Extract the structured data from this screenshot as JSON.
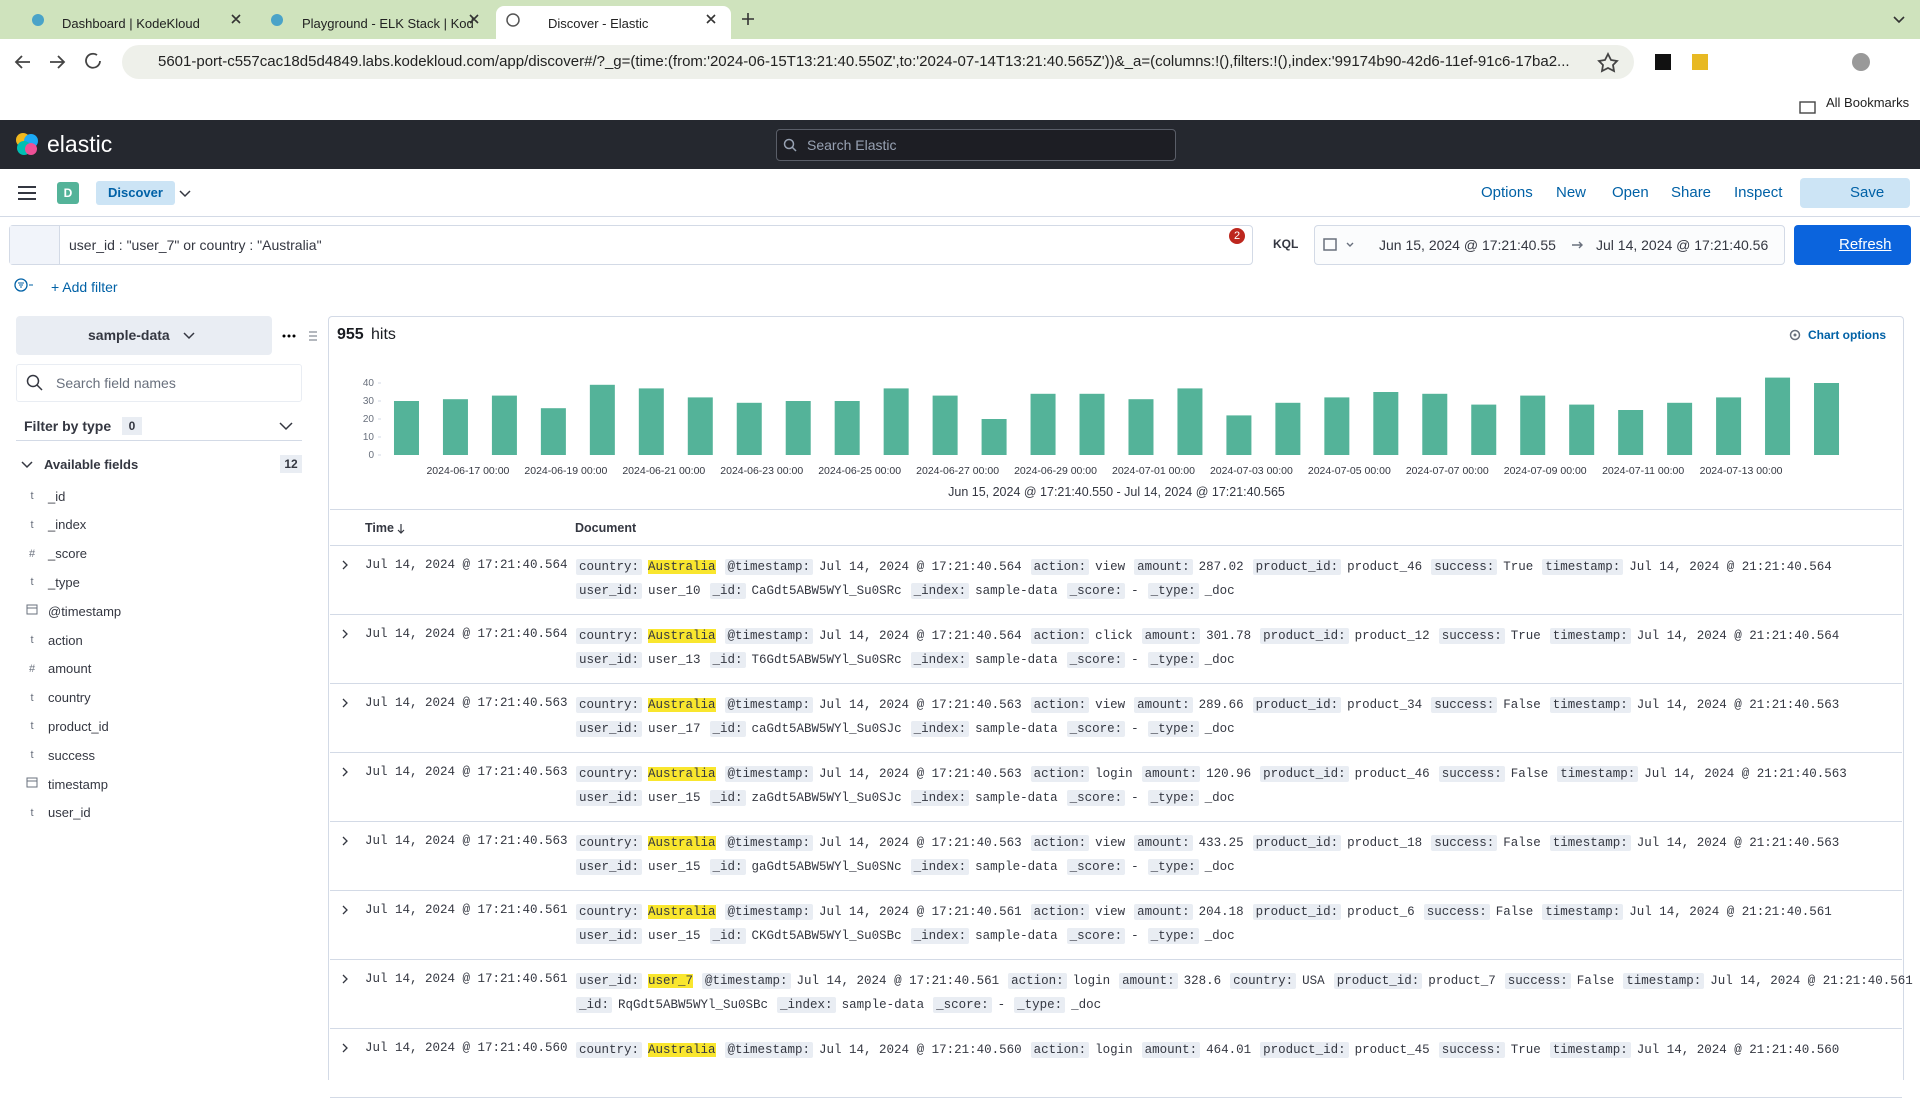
{
  "browser": {
    "tabs": [
      "Dashboard | KodeKloud",
      "Playground - ELK Stack | Kod",
      "Discover - Elastic"
    ],
    "url": "5601-port-c557cac18d5d4849.labs.kodekloud.com/app/discover#/?_g=(time:(from:'2024-06-15T13:21:40.550Z',to:'2024-07-14T13:21:40.565Z'))&_a=(columns:!(),filters:!(),index:'99174b90-42d6-11ef-91c6-17ba2...",
    "bookmarks": "All Bookmarks"
  },
  "header": {
    "logo": "elastic",
    "search": "Search Elastic"
  },
  "nav": {
    "space": "D",
    "app": "Discover",
    "menu": [
      "Options",
      "New",
      "Open",
      "Share",
      "Inspect"
    ],
    "save": "Save"
  },
  "query": {
    "text": "user_id : \"user_7\" or country : \"Australia\"",
    "badge": "2",
    "language": "KQL",
    "from": "Jun 15, 2024 @ 17:21:40.55",
    "to": "Jul 14, 2024 @ 17:21:40.56",
    "refresh": "Refresh",
    "add_filter": "+ Add filter"
  },
  "sidebar": {
    "data_view": "sample-data",
    "search": "Search field names",
    "filter_by_type": "Filter by type",
    "filter_count": "0",
    "available": "Available fields",
    "available_count": "12",
    "fields": [
      {
        "icon": "t",
        "name": "_id"
      },
      {
        "icon": "t",
        "name": "_index"
      },
      {
        "icon": "#",
        "name": "_score"
      },
      {
        "icon": "t",
        "name": "_type"
      },
      {
        "icon": null,
        "name": "@timestamp"
      },
      {
        "icon": "t",
        "name": "action"
      },
      {
        "icon": "#",
        "name": "amount"
      },
      {
        "icon": "t",
        "name": "country"
      },
      {
        "icon": "t",
        "name": "product_id"
      },
      {
        "icon": "t",
        "name": "success"
      },
      {
        "icon": null,
        "name": "timestamp"
      },
      {
        "icon": "t",
        "name": "user_id"
      }
    ]
  },
  "results": {
    "hits": "955",
    "hits_label": "hits",
    "chart_options": "Chart options"
  },
  "chart_data": {
    "type": "bar",
    "color": "#54b399",
    "x_label": "Jun 15, 2024 @ 17:21:40.550 - Jul 14, 2024 @ 17:21:40.565",
    "categories": [
      null,
      null,
      "2024-06-17 00:00",
      null,
      "2024-06-19 00:00",
      null,
      "2024-06-21 00:00",
      null,
      "2024-06-23 00:00",
      null,
      "2024-06-25 00:00",
      null,
      "2024-06-27 00:00",
      null,
      "2024-06-29 00:00",
      null,
      "2024-07-01 00:00",
      null,
      "2024-07-03 00:00",
      null,
      "2024-07-05 00:00",
      null,
      "2024-07-07 00:00",
      null,
      "2024-07-09 00:00",
      null,
      "2024-07-11 00:00",
      null,
      "2024-07-13 00:00",
      null
    ],
    "values": [
      30,
      31,
      33,
      26,
      39,
      37,
      32,
      29,
      30,
      30,
      37,
      33,
      20,
      34,
      34,
      31,
      37,
      22,
      29,
      32,
      35,
      34,
      28,
      33,
      28,
      25,
      29,
      32,
      43,
      40
    ],
    "ylim": [
      0,
      45
    ],
    "yticks": [
      0,
      10,
      20,
      30,
      40
    ]
  },
  "table": {
    "headers": [
      "Time",
      "Document"
    ],
    "rows": [
      {
        "time": "Jul 14, 2024 @ 17:21:40.564",
        "lines": [
          [
            {
              "k": "country:",
              "v": "Australia",
              "mark": true
            },
            {
              "k": "@timestamp:",
              "v": "Jul 14, 2024 @ 17:21:40.564"
            },
            {
              "k": "action:",
              "v": "view"
            },
            {
              "k": "amount:",
              "v": "287.02"
            },
            {
              "k": "product_id:",
              "v": "product_46"
            },
            {
              "k": "success:",
              "v": "True"
            },
            {
              "k": "timestamp:",
              "v": "Jul 14, 2024 @ 21:21:40.564"
            }
          ],
          [
            {
              "k": "user_id:",
              "v": "user_10"
            },
            {
              "k": "_id:",
              "v": "CaGdt5ABW5WYl_Su0SRc"
            },
            {
              "k": "_index:",
              "v": "sample-data"
            },
            {
              "k": "_score:",
              "v": "-"
            },
            {
              "k": "_type:",
              "v": "_doc"
            }
          ]
        ]
      },
      {
        "time": "Jul 14, 2024 @ 17:21:40.564",
        "lines": [
          [
            {
              "k": "country:",
              "v": "Australia",
              "mark": true
            },
            {
              "k": "@timestamp:",
              "v": "Jul 14, 2024 @ 17:21:40.564"
            },
            {
              "k": "action:",
              "v": "click"
            },
            {
              "k": "amount:",
              "v": "301.78"
            },
            {
              "k": "product_id:",
              "v": "product_12"
            },
            {
              "k": "success:",
              "v": "True"
            },
            {
              "k": "timestamp:",
              "v": "Jul 14, 2024 @ 21:21:40.564"
            }
          ],
          [
            {
              "k": "user_id:",
              "v": "user_13"
            },
            {
              "k": "_id:",
              "v": "T6Gdt5ABW5WYl_Su0SRc"
            },
            {
              "k": "_index:",
              "v": "sample-data"
            },
            {
              "k": "_score:",
              "v": "-"
            },
            {
              "k": "_type:",
              "v": "_doc"
            }
          ]
        ]
      },
      {
        "time": "Jul 14, 2024 @ 17:21:40.563",
        "lines": [
          [
            {
              "k": "country:",
              "v": "Australia",
              "mark": true
            },
            {
              "k": "@timestamp:",
              "v": "Jul 14, 2024 @ 17:21:40.563"
            },
            {
              "k": "action:",
              "v": "view"
            },
            {
              "k": "amount:",
              "v": "289.66"
            },
            {
              "k": "product_id:",
              "v": "product_34"
            },
            {
              "k": "success:",
              "v": "False"
            },
            {
              "k": "timestamp:",
              "v": "Jul 14, 2024 @ 21:21:40.563"
            }
          ],
          [
            {
              "k": "user_id:",
              "v": "user_17"
            },
            {
              "k": "_id:",
              "v": "caGdt5ABW5WYl_Su0SJc"
            },
            {
              "k": "_index:",
              "v": "sample-data"
            },
            {
              "k": "_score:",
              "v": "-"
            },
            {
              "k": "_type:",
              "v": "_doc"
            }
          ]
        ]
      },
      {
        "time": "Jul 14, 2024 @ 17:21:40.563",
        "lines": [
          [
            {
              "k": "country:",
              "v": "Australia",
              "mark": true
            },
            {
              "k": "@timestamp:",
              "v": "Jul 14, 2024 @ 17:21:40.563"
            },
            {
              "k": "action:",
              "v": "login"
            },
            {
              "k": "amount:",
              "v": "120.96"
            },
            {
              "k": "product_id:",
              "v": "product_46"
            },
            {
              "k": "success:",
              "v": "False"
            },
            {
              "k": "timestamp:",
              "v": "Jul 14, 2024 @ 21:21:40.563"
            }
          ],
          [
            {
              "k": "user_id:",
              "v": "user_15"
            },
            {
              "k": "_id:",
              "v": "zaGdt5ABW5WYl_Su0SJc"
            },
            {
              "k": "_index:",
              "v": "sample-data"
            },
            {
              "k": "_score:",
              "v": "-"
            },
            {
              "k": "_type:",
              "v": "_doc"
            }
          ]
        ]
      },
      {
        "time": "Jul 14, 2024 @ 17:21:40.563",
        "lines": [
          [
            {
              "k": "country:",
              "v": "Australia",
              "mark": true
            },
            {
              "k": "@timestamp:",
              "v": "Jul 14, 2024 @ 17:21:40.563"
            },
            {
              "k": "action:",
              "v": "view"
            },
            {
              "k": "amount:",
              "v": "433.25"
            },
            {
              "k": "product_id:",
              "v": "product_18"
            },
            {
              "k": "success:",
              "v": "False"
            },
            {
              "k": "timestamp:",
              "v": "Jul 14, 2024 @ 21:21:40.563"
            }
          ],
          [
            {
              "k": "user_id:",
              "v": "user_15"
            },
            {
              "k": "_id:",
              "v": "gaGdt5ABW5WYl_Su0SNc"
            },
            {
              "k": "_index:",
              "v": "sample-data"
            },
            {
              "k": "_score:",
              "v": "-"
            },
            {
              "k": "_type:",
              "v": "_doc"
            }
          ]
        ]
      },
      {
        "time": "Jul 14, 2024 @ 17:21:40.561",
        "lines": [
          [
            {
              "k": "country:",
              "v": "Australia",
              "mark": true
            },
            {
              "k": "@timestamp:",
              "v": "Jul 14, 2024 @ 17:21:40.561"
            },
            {
              "k": "action:",
              "v": "view"
            },
            {
              "k": "amount:",
              "v": "204.18"
            },
            {
              "k": "product_id:",
              "v": "product_6"
            },
            {
              "k": "success:",
              "v": "False"
            },
            {
              "k": "timestamp:",
              "v": "Jul 14, 2024 @ 21:21:40.561"
            }
          ],
          [
            {
              "k": "user_id:",
              "v": "user_15"
            },
            {
              "k": "_id:",
              "v": "CKGdt5ABW5WYl_Su0SBc"
            },
            {
              "k": "_index:",
              "v": "sample-data"
            },
            {
              "k": "_score:",
              "v": "-"
            },
            {
              "k": "_type:",
              "v": "_doc"
            }
          ]
        ]
      },
      {
        "time": "Jul 14, 2024 @ 17:21:40.561",
        "lines": [
          [
            {
              "k": "user_id:",
              "v": "user_7",
              "mark": true
            },
            {
              "k": "@timestamp:",
              "v": "Jul 14, 2024 @ 17:21:40.561"
            },
            {
              "k": "action:",
              "v": "login"
            },
            {
              "k": "amount:",
              "v": "328.6"
            },
            {
              "k": "country:",
              "v": "USA"
            },
            {
              "k": "product_id:",
              "v": "product_7"
            },
            {
              "k": "success:",
              "v": "False"
            },
            {
              "k": "timestamp:",
              "v": "Jul 14, 2024 @ 21:21:40.561"
            }
          ],
          [
            {
              "k": "_id:",
              "v": "RqGdt5ABW5WYl_Su0SBc"
            },
            {
              "k": "_index:",
              "v": "sample-data"
            },
            {
              "k": "_score:",
              "v": "-"
            },
            {
              "k": "_type:",
              "v": "_doc"
            }
          ]
        ]
      },
      {
        "time": "Jul 14, 2024 @ 17:21:40.560",
        "lines": [
          [
            {
              "k": "country:",
              "v": "Australia",
              "mark": true
            },
            {
              "k": "@timestamp:",
              "v": "Jul 14, 2024 @ 17:21:40.560"
            },
            {
              "k": "action:",
              "v": "login"
            },
            {
              "k": "amount:",
              "v": "464.01"
            },
            {
              "k": "product_id:",
              "v": "product_45"
            },
            {
              "k": "success:",
              "v": "True"
            },
            {
              "k": "timestamp:",
              "v": "Jul 14, 2024 @ 21:21:40.560"
            }
          ]
        ]
      }
    ]
  }
}
